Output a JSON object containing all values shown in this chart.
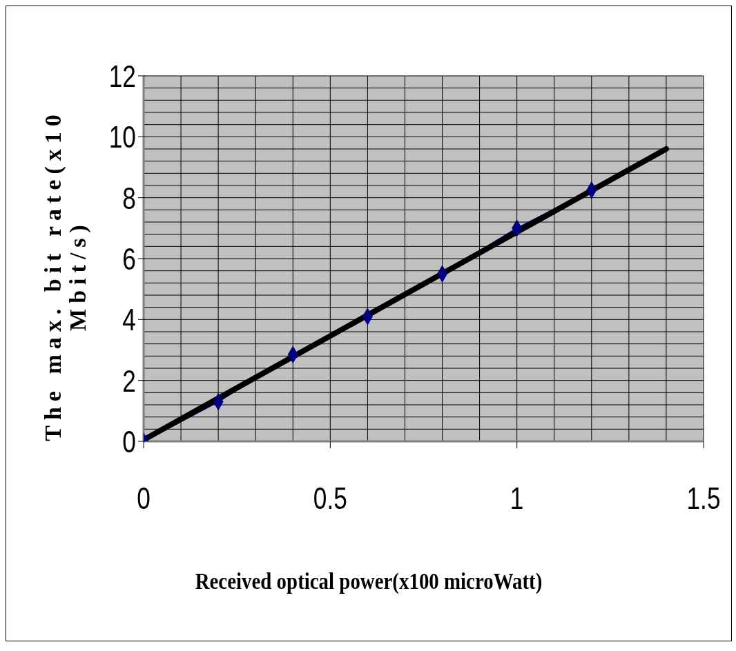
{
  "chart_data": {
    "type": "line",
    "xlabel": "Received optical power(x100 microWatt)",
    "ylabel": "The max. bit rate(x10 Mbit/s)",
    "xlim": [
      0,
      1.5
    ],
    "ylim": [
      0,
      12
    ],
    "xticks": [
      0,
      {
        "value": 0.1,
        "label": null
      },
      {
        "value": 0.2,
        "label": null
      },
      {
        "value": 0.3,
        "label": null
      },
      {
        "value": 0.4,
        "label": null
      },
      0.5,
      {
        "value": 0.6,
        "label": null
      },
      {
        "value": 0.7,
        "label": null
      },
      {
        "value": 0.8,
        "label": null
      },
      {
        "value": 0.9,
        "label": null
      },
      1,
      {
        "value": 1.1,
        "label": null
      },
      {
        "value": 1.2,
        "label": null
      },
      {
        "value": 1.3,
        "label": null
      },
      {
        "value": 1.4,
        "label": null
      },
      1.5
    ],
    "yticks": [
      0,
      {
        "value": 0.4,
        "label": null
      },
      {
        "value": 0.8,
        "label": null
      },
      {
        "value": 1.2,
        "label": null
      },
      {
        "value": 1.6,
        "label": null
      },
      2,
      {
        "value": 2.4,
        "label": null
      },
      {
        "value": 2.8,
        "label": null
      },
      {
        "value": 3.2,
        "label": null
      },
      {
        "value": 3.6,
        "label": null
      },
      4,
      {
        "value": 4.4,
        "label": null
      },
      {
        "value": 4.8,
        "label": null
      },
      {
        "value": 5.2,
        "label": null
      },
      {
        "value": 5.6,
        "label": null
      },
      6,
      {
        "value": 6.4,
        "label": null
      },
      {
        "value": 6.8,
        "label": null
      },
      {
        "value": 7.2,
        "label": null
      },
      {
        "value": 7.6,
        "label": null
      },
      8,
      {
        "value": 8.4,
        "label": null
      },
      {
        "value": 8.8,
        "label": null
      },
      {
        "value": 9.2,
        "label": null
      },
      {
        "value": 9.6,
        "label": null
      },
      10,
      {
        "value": 10.4,
        "label": null
      },
      {
        "value": 10.8,
        "label": null
      },
      {
        "value": 11.2,
        "label": null
      },
      {
        "value": 11.6,
        "label": null
      },
      12
    ],
    "grid": true,
    "series": [
      {
        "color": "#000080",
        "marker": "diamond",
        "x": [
          0,
          0.2,
          0.4,
          0.6,
          0.8,
          1.0,
          1.2
        ],
        "values": [
          0,
          1.3,
          2.85,
          4.1,
          5.5,
          7.0,
          8.25
        ]
      },
      {
        "color": "#000000",
        "marker": "none",
        "x": [
          0,
          1.4
        ],
        "values": [
          0.05,
          9.6
        ]
      }
    ]
  }
}
